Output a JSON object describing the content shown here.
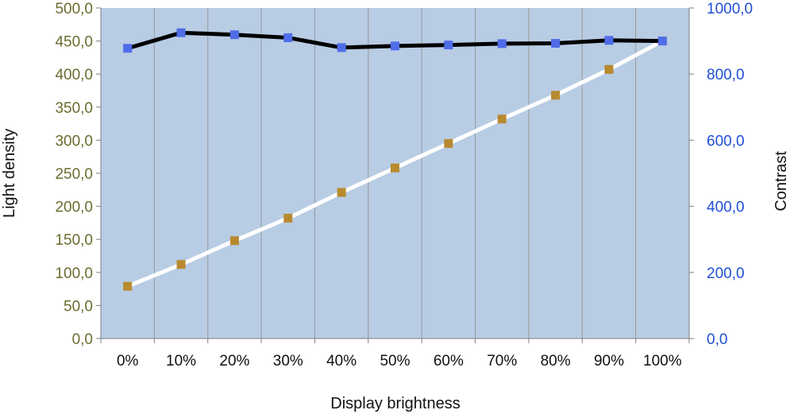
{
  "chart_data": {
    "type": "line",
    "title": "",
    "xlabel": "Display brightness",
    "ylabel": "Light density",
    "y2label": "Contrast",
    "categories": [
      "0%",
      "10%",
      "20%",
      "30%",
      "40%",
      "50%",
      "60%",
      "70%",
      "80%",
      "90%",
      "100%"
    ],
    "ylim": [
      0,
      500
    ],
    "y2lim": [
      0,
      1000
    ],
    "yticks": [
      "0,0",
      "50,0",
      "100,0",
      "150,0",
      "200,0",
      "250,0",
      "300,0",
      "350,0",
      "400,0",
      "450,0",
      "500,0"
    ],
    "y2ticks": [
      "0,0",
      "200,0",
      "400,0",
      "600,0",
      "800,0",
      "1000,0"
    ],
    "grid": "vertical",
    "legend": "none",
    "series": [
      {
        "axis": "left",
        "values": [
          79,
          112,
          148,
          182,
          221,
          258,
          295,
          332,
          368,
          407,
          450
        ],
        "line_color": "#ffffff",
        "marker_color": "#b88a2e"
      },
      {
        "axis": "right",
        "values": [
          878,
          925,
          919,
          910,
          880,
          885,
          888,
          892,
          893,
          902,
          900
        ],
        "line_color": "#000000",
        "marker_color": "#4f6de8"
      }
    ],
    "colors": {
      "plot_background": "#b8cce4",
      "grid": "#999999",
      "left_axis_text": "#6b6b2e",
      "right_axis_text": "#1f4fd6"
    }
  }
}
